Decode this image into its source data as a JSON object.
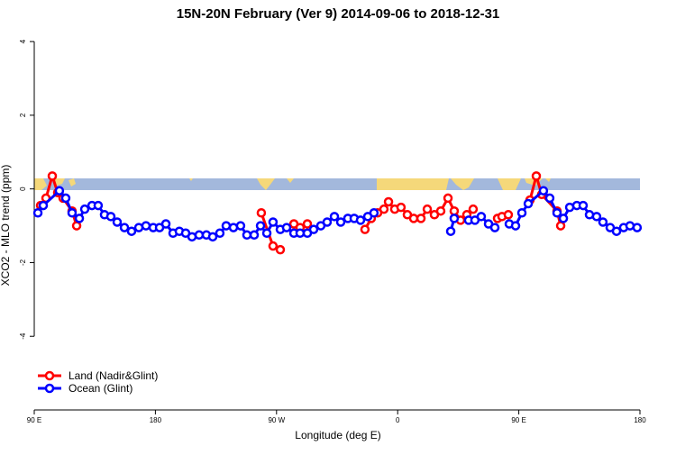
{
  "chart_data": {
    "type": "line",
    "title": "15N-20N February (Ver 9)   2014-09-06 to 2018-12-31",
    "xlabel": "Longitude (deg E)",
    "ylabel": "XCO2 - MLO trend (ppm)",
    "xlim": [
      90,
      540
    ],
    "ylim": [
      -6,
      4.15
    ],
    "xticks": [
      {
        "value": 90,
        "label": "90 E"
      },
      180,
      {
        "value": 270,
        "label": "90 W"
      },
      {
        "value": 360,
        "label": "0"
      },
      {
        "value": 450,
        "label": "90 E"
      },
      {
        "value": 540,
        "label": "180"
      }
    ],
    "yticks": [
      -4,
      -2,
      0,
      2,
      4
    ],
    "legend": "bottom-left",
    "series": [
      {
        "name": "Land (Nadir&Glint)",
        "color": "#ff0000",
        "x": [
          94.7,
          98.7,
          103.4,
          107.4,
          111.4,
          118.1,
          121.5,
          null,
          258.7,
          267.4,
          272.8,
          null,
          282.9,
          287.5,
          292.9,
          null,
          335.7,
          340.4,
          345.1,
          349.8,
          353.2,
          357.8,
          362.5,
          367.2,
          371.9,
          377.3,
          382,
          387.3,
          392,
          397.4,
          402,
          406.7,
          411.4,
          416.1,
          null,
          434.2,
          437.5,
          442.2,
          null,
          458.3,
          463,
          467,
          478.4,
          481.1
        ],
        "values": [
          -0.45,
          -0.25,
          0.35,
          -0.1,
          -0.25,
          -0.6,
          -1.0,
          null,
          -0.65,
          -1.55,
          -1.65,
          null,
          -0.95,
          -1.05,
          -0.95,
          null,
          -1.1,
          -0.8,
          -0.65,
          -0.55,
          -0.35,
          -0.55,
          -0.5,
          -0.7,
          -0.8,
          -0.8,
          -0.55,
          -0.7,
          -0.6,
          -0.25,
          -0.6,
          -0.85,
          -0.7,
          -0.55,
          null,
          -0.8,
          -0.75,
          -0.7,
          null,
          -0.3,
          0.35,
          -0.15,
          -0.6,
          -1.0
        ]
      },
      {
        "name": "Ocean (Glint)",
        "color": "#0000ff",
        "x": [
          92.7,
          96.7,
          108.7,
          113.4,
          118.1,
          123.5,
          127.5,
          132.9,
          137.5,
          142.2,
          146.9,
          151.6,
          157,
          162.3,
          167.7,
          173,
          178.4,
          183.1,
          187.8,
          193.1,
          197.8,
          202.5,
          207.2,
          212.5,
          217.9,
          222.6,
          227.9,
          232.6,
          238,
          243.3,
          248,
          253.4,
          258.1,
          262.8,
          267.4,
          272.8,
          277.5,
          282.9,
          287.5,
          292.9,
          297.6,
          302.9,
          307.6,
          313,
          317.7,
          323,
          327.7,
          332.4,
          337.8,
          342.4,
          null,
          399.4,
          402,
          null,
          412.7,
          417.4,
          422.1,
          427.5,
          432.2,
          null,
          442.9,
          447.6,
          452.3,
          457,
          468.3,
          473,
          478.4,
          483.1,
          487.8,
          493.1,
          497.8,
          502.5,
          507.8,
          512.5,
          517.9,
          522.6,
          527.9,
          532.6,
          537.9
        ],
        "values": [
          -0.65,
          -0.45,
          -0.05,
          -0.25,
          -0.65,
          -0.8,
          -0.55,
          -0.45,
          -0.45,
          -0.7,
          -0.75,
          -0.9,
          -1.05,
          -1.15,
          -1.05,
          -1.0,
          -1.05,
          -1.05,
          -0.95,
          -1.2,
          -1.15,
          -1.2,
          -1.3,
          -1.25,
          -1.25,
          -1.3,
          -1.2,
          -1.0,
          -1.05,
          -1.0,
          -1.25,
          -1.25,
          -1.0,
          -1.2,
          -0.9,
          -1.1,
          -1.05,
          -1.2,
          -1.2,
          -1.2,
          -1.1,
          -1.0,
          -0.9,
          -0.75,
          -0.9,
          -0.8,
          -0.8,
          -0.85,
          -0.75,
          -0.65,
          null,
          -1.15,
          -0.8,
          null,
          -0.85,
          -0.85,
          -0.75,
          -0.95,
          -1.05,
          null,
          -0.95,
          -1.0,
          -0.65,
          -0.4,
          -0.05,
          -0.25,
          -0.65,
          -0.8,
          -0.5,
          -0.45,
          -0.45,
          -0.7,
          -0.75,
          -0.9,
          -1.05,
          -1.15,
          -1.05,
          -1.0,
          -1.05
        ]
      }
    ]
  }
}
